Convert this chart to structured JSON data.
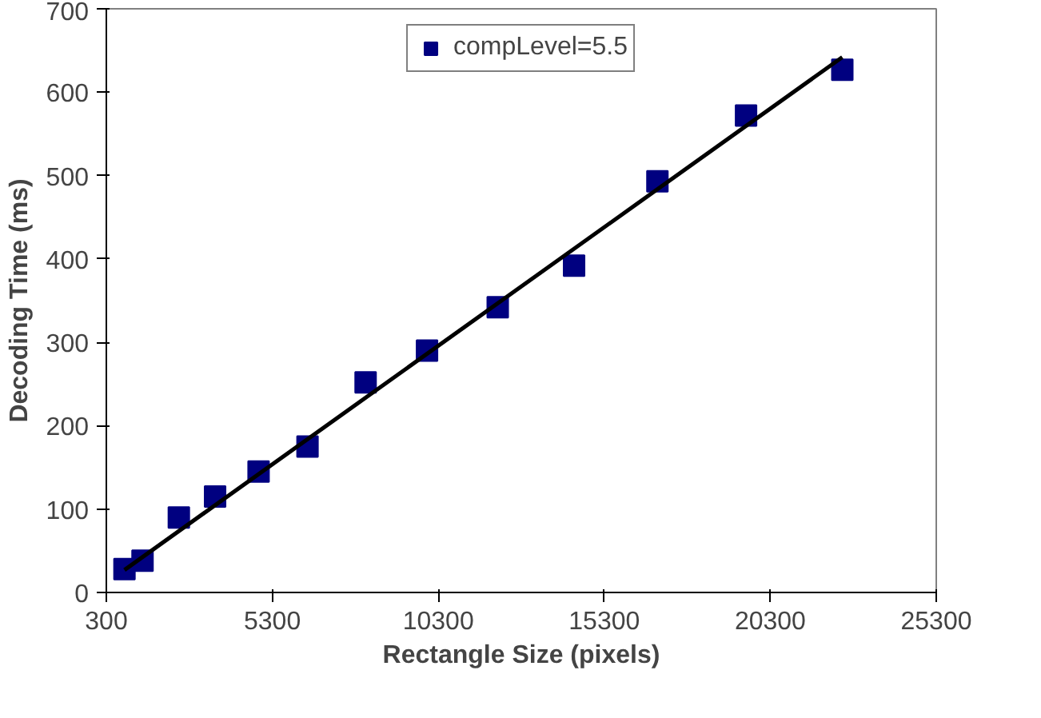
{
  "chart_data": {
    "type": "scatter",
    "xlabel": "Rectangle Size (pixels)",
    "ylabel": "Decoding Time (ms)",
    "xlim": [
      300,
      25300
    ],
    "xticks": [
      300,
      5300,
      10300,
      15300,
      20300,
      25300
    ],
    "ylim": [
      0,
      700
    ],
    "yticks": [
      0,
      100,
      200,
      300,
      400,
      500,
      600,
      700
    ],
    "grid": false,
    "legend": "top",
    "series": [
      {
        "name": "compLevel=5.5",
        "color": "#000080",
        "marker": "square",
        "x": [
          846,
          1390,
          2484,
          3576,
          4886,
          6360,
          8110,
          9960,
          12090,
          14390,
          16900,
          19570,
          22470
        ],
        "values": [
          28,
          38,
          90,
          115,
          145,
          175,
          252,
          290,
          342,
          392,
          493,
          572,
          627
        ]
      },
      {
        "color": "#000000",
        "type": "line",
        "x": [
          846,
          22470
        ],
        "values": [
          27,
          642
        ]
      }
    ]
  }
}
